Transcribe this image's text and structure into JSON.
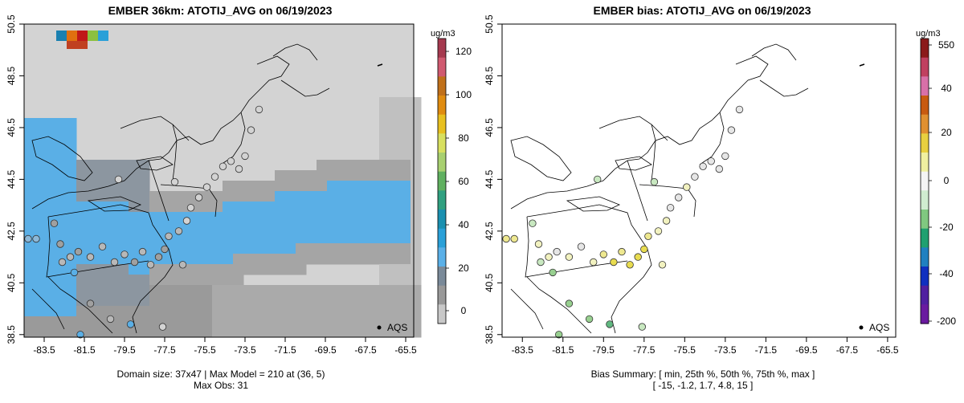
{
  "left": {
    "title": "EMBER 36km: ATOTIJ_AVG on 06/19/2023",
    "footer_line1": "Domain size: 37x47 | Max Model = 210 at (36, 5)",
    "footer_line2": "Max Obs: 31",
    "legend_label": "AQS",
    "colorbar_unit": "ug/m3",
    "colorbar_ticks": [
      "120",
      "100",
      "80",
      "60",
      "40",
      "20",
      "0"
    ],
    "colorbar_colors": [
      "#a53a4f",
      "#d05a70",
      "#c0701a",
      "#e08c10",
      "#e8c020",
      "#d8e060",
      "#a8d070",
      "#60b060",
      "#30a080",
      "#1a90b0",
      "#2aa0d8",
      "#5ab0e8",
      "#7a8a99",
      "#999999",
      "#c8c8c8"
    ]
  },
  "right": {
    "title": "EMBER bias: ATOTIJ_AVG on 06/19/2023",
    "footer_line1": "Bias Summary: [ min, 25th %, 50th %, 75th %, max ]",
    "footer_line2": "[ -15,  -1.2,  1.7,  4.8,  15 ]",
    "legend_label": "AQS",
    "colorbar_unit": "ug/m3",
    "colorbar_ticks": [
      "550",
      "40",
      "20",
      "0",
      "-20",
      "-40",
      "-200"
    ],
    "colorbar_colors": [
      "#8b1a1a",
      "#c04060",
      "#d870a8",
      "#c85a10",
      "#e09030",
      "#e8d040",
      "#f0f0a0",
      "#f4f4f4",
      "#d0ecd0",
      "#80c880",
      "#20a070",
      "#2080c0",
      "#1030c0",
      "#5020a0",
      "#6a1aa0"
    ]
  },
  "chart_data": [
    {
      "type": "scatter",
      "title": "EMBER 36km: ATOTIJ_AVG on 06/19/2023",
      "xlabel": "",
      "ylabel": "",
      "x_ticks": [
        "-83.5",
        "-81.5",
        "-79.5",
        "-77.5",
        "-75.5",
        "-73.5",
        "-71.5",
        "-69.5",
        "-67.5",
        "-65.5"
      ],
      "y_ticks": [
        "38.5",
        "40.5",
        "42.5",
        "44.5",
        "46.5",
        "48.5",
        "50.5"
      ],
      "xlim": [
        -84.5,
        -65.1
      ],
      "ylim": [
        38.4,
        50.5
      ],
      "colorbar_range": [
        -9,
        127
      ],
      "annotation": "Max Model = 210 at (36, 5); Max Obs: 31",
      "points": [
        {
          "lon": -84.3,
          "lat": 42.2,
          "value": 25
        },
        {
          "lon": -83.9,
          "lat": 42.2,
          "value": 23
        },
        {
          "lon": -83.0,
          "lat": 42.8,
          "value": 18
        },
        {
          "lon": -82.7,
          "lat": 42.0,
          "value": 16
        },
        {
          "lon": -82.6,
          "lat": 41.3,
          "value": 12
        },
        {
          "lon": -82.2,
          "lat": 41.5,
          "value": 11
        },
        {
          "lon": -81.8,
          "lat": 41.7,
          "value": 14
        },
        {
          "lon": -81.2,
          "lat": 41.5,
          "value": 13
        },
        {
          "lon": -80.6,
          "lat": 41.9,
          "value": 12
        },
        {
          "lon": -80.0,
          "lat": 41.3,
          "value": 12
        },
        {
          "lon": -79.5,
          "lat": 41.6,
          "value": 12
        },
        {
          "lon": -79.0,
          "lat": 41.3,
          "value": 14
        },
        {
          "lon": -78.6,
          "lat": 41.7,
          "value": 11
        },
        {
          "lon": -78.2,
          "lat": 41.2,
          "value": 13
        },
        {
          "lon": -77.8,
          "lat": 41.5,
          "value": 14
        },
        {
          "lon": -77.5,
          "lat": 41.8,
          "value": 15
        },
        {
          "lon": -77.3,
          "lat": 42.3,
          "value": 12
        },
        {
          "lon": -76.8,
          "lat": 42.5,
          "value": 10
        },
        {
          "lon": -76.6,
          "lat": 41.2,
          "value": 13
        },
        {
          "lon": -76.4,
          "lat": 42.9,
          "value": 8
        },
        {
          "lon": -76.2,
          "lat": 43.4,
          "value": 9
        },
        {
          "lon": -75.8,
          "lat": 43.8,
          "value": 7
        },
        {
          "lon": -75.4,
          "lat": 44.2,
          "value": 6
        },
        {
          "lon": -75.0,
          "lat": 44.6,
          "value": 5
        },
        {
          "lon": -74.6,
          "lat": 45.0,
          "value": 6
        },
        {
          "lon": -74.2,
          "lat": 45.2,
          "value": 5
        },
        {
          "lon": -73.8,
          "lat": 44.9,
          "value": 5
        },
        {
          "lon": -73.5,
          "lat": 45.4,
          "value": 6
        },
        {
          "lon": -73.2,
          "lat": 46.4,
          "value": 4
        },
        {
          "lon": -72.8,
          "lat": 47.2,
          "value": 4
        },
        {
          "lon": -77.0,
          "lat": 44.4,
          "value": 7
        },
        {
          "lon": -79.8,
          "lat": 44.5,
          "value": 8
        },
        {
          "lon": -82.0,
          "lat": 40.9,
          "value": 28
        },
        {
          "lon": -81.2,
          "lat": 39.7,
          "value": 14
        },
        {
          "lon": -80.2,
          "lat": 39.1,
          "value": 12
        },
        {
          "lon": -79.2,
          "lat": 38.9,
          "value": 31
        },
        {
          "lon": -77.6,
          "lat": 38.8,
          "value": 9
        },
        {
          "lon": -81.7,
          "lat": 38.5,
          "value": 29
        }
      ],
      "site_legend": "AQS"
    },
    {
      "type": "scatter",
      "title": "EMBER bias: ATOTIJ_AVG on 06/19/2023",
      "xlabel": "",
      "ylabel": "",
      "x_ticks": [
        "-83.5",
        "-81.5",
        "-79.5",
        "-77.5",
        "-75.5",
        "-73.5",
        "-71.5",
        "-69.5",
        "-67.5",
        "-65.5"
      ],
      "y_ticks": [
        "38.5",
        "40.5",
        "42.5",
        "44.5",
        "46.5",
        "48.5",
        "50.5"
      ],
      "xlim": [
        -84.5,
        -65.1
      ],
      "ylim": [
        38.4,
        50.5
      ],
      "colorbar_range": [
        -200,
        550
      ],
      "bias_summary": {
        "min": -15,
        "p25": -1.2,
        "p50": 1.7,
        "p75": 4.8,
        "max": 15
      },
      "points": [
        {
          "lon": -84.3,
          "lat": 42.2,
          "value": 8
        },
        {
          "lon": -83.9,
          "lat": 42.2,
          "value": 9
        },
        {
          "lon": -83.0,
          "lat": 42.8,
          "value": -3
        },
        {
          "lon": -82.7,
          "lat": 42.0,
          "value": 6
        },
        {
          "lon": -82.6,
          "lat": 41.3,
          "value": -2
        },
        {
          "lon": -82.2,
          "lat": 41.5,
          "value": 3
        },
        {
          "lon": -81.8,
          "lat": 41.7,
          "value": 2
        },
        {
          "lon": -81.2,
          "lat": 41.5,
          "value": 4
        },
        {
          "lon": -80.6,
          "lat": 41.9,
          "value": 1
        },
        {
          "lon": -80.0,
          "lat": 41.3,
          "value": 5
        },
        {
          "lon": -79.5,
          "lat": 41.6,
          "value": 10
        },
        {
          "lon": -79.0,
          "lat": 41.3,
          "value": 12
        },
        {
          "lon": -78.6,
          "lat": 41.7,
          "value": 11
        },
        {
          "lon": -78.2,
          "lat": 41.2,
          "value": 15
        },
        {
          "lon": -77.8,
          "lat": 41.5,
          "value": 13
        },
        {
          "lon": -77.5,
          "lat": 41.8,
          "value": 12
        },
        {
          "lon": -77.3,
          "lat": 42.3,
          "value": 9
        },
        {
          "lon": -76.8,
          "lat": 42.5,
          "value": 6
        },
        {
          "lon": -76.6,
          "lat": 41.2,
          "value": 4
        },
        {
          "lon": -76.4,
          "lat": 42.9,
          "value": 3
        },
        {
          "lon": -76.2,
          "lat": 43.4,
          "value": 2
        },
        {
          "lon": -75.8,
          "lat": 43.8,
          "value": 1
        },
        {
          "lon": -75.4,
          "lat": 44.2,
          "value": 3
        },
        {
          "lon": -75.0,
          "lat": 44.6,
          "value": 2
        },
        {
          "lon": -74.6,
          "lat": 45.0,
          "value": 0
        },
        {
          "lon": -74.2,
          "lat": 45.2,
          "value": 1
        },
        {
          "lon": -73.8,
          "lat": 44.9,
          "value": 0
        },
        {
          "lon": -73.5,
          "lat": 45.4,
          "value": 2
        },
        {
          "lon": -73.2,
          "lat": 46.4,
          "value": -1
        },
        {
          "lon": -72.8,
          "lat": 47.2,
          "value": 0
        },
        {
          "lon": -77.0,
          "lat": 44.4,
          "value": -2
        },
        {
          "lon": -79.8,
          "lat": 44.5,
          "value": -4
        },
        {
          "lon": -82.0,
          "lat": 40.9,
          "value": -6
        },
        {
          "lon": -81.2,
          "lat": 39.7,
          "value": -5
        },
        {
          "lon": -80.2,
          "lat": 39.1,
          "value": -8
        },
        {
          "lon": -79.2,
          "lat": 38.9,
          "value": -15
        },
        {
          "lon": -77.6,
          "lat": 38.8,
          "value": -3
        },
        {
          "lon": -81.7,
          "lat": 38.5,
          "value": -7
        }
      ],
      "site_legend": "AQS"
    }
  ]
}
